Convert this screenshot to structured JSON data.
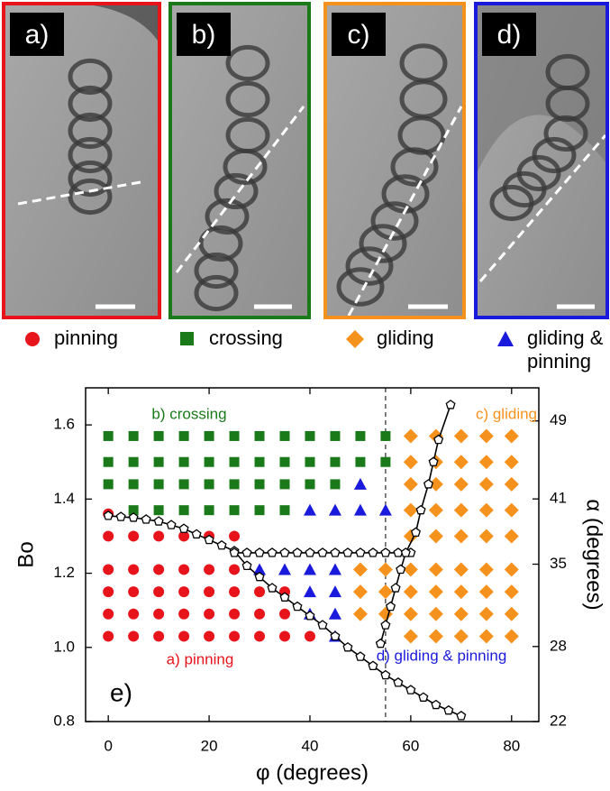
{
  "panels": [
    {
      "label": "a)"
    },
    {
      "label": "b)"
    },
    {
      "label": "c)"
    },
    {
      "label": "d)"
    }
  ],
  "chart_data": {
    "type": "scatter",
    "xlabel": "φ (degrees)",
    "ylabel": "Bo",
    "y2label": "α (degrees)",
    "xlim": [
      -4.5,
      85.4
    ],
    "ylim": [
      0.8,
      1.7
    ],
    "xticks": [
      0,
      20,
      40,
      60,
      80
    ],
    "yticks": [
      0.8,
      {
        "value": 1.0,
        "label": "1.0"
      },
      1.2,
      1.4,
      1.6
    ],
    "y2lim": [
      22,
      52.8
    ],
    "y2scale": "sine",
    "y2ticks": [
      22,
      28,
      35,
      41,
      49
    ],
    "series": [
      {
        "name": "pinning",
        "color": "#e8141c",
        "marker": "circle",
        "x": [
          0,
          5,
          10,
          15,
          20,
          25,
          30,
          35,
          40,
          0,
          5,
          10,
          15,
          20,
          25,
          30,
          35,
          0,
          5,
          10,
          15,
          20,
          25,
          30,
          35,
          0,
          5,
          10,
          15,
          20,
          25,
          0,
          5,
          10,
          15,
          20,
          25,
          0
        ],
        "values": [
          1.03,
          1.03,
          1.03,
          1.03,
          1.03,
          1.03,
          1.03,
          1.03,
          1.03,
          1.09,
          1.09,
          1.09,
          1.09,
          1.09,
          1.09,
          1.09,
          1.09,
          1.15,
          1.15,
          1.15,
          1.15,
          1.15,
          1.15,
          1.15,
          1.15,
          1.21,
          1.21,
          1.21,
          1.21,
          1.21,
          1.21,
          1.3,
          1.3,
          1.3,
          1.3,
          1.3,
          1.3,
          1.36
        ]
      },
      {
        "name": "crossing",
        "color": "#1a7a1a",
        "marker": "square",
        "x": [
          5,
          10,
          15,
          20,
          25,
          30,
          35,
          0,
          5,
          10,
          15,
          20,
          25,
          30,
          35,
          40,
          45,
          0,
          5,
          10,
          15,
          20,
          25,
          30,
          35,
          40,
          45,
          50,
          55,
          0,
          5,
          10,
          15,
          20,
          25,
          30,
          35,
          40,
          45,
          50,
          55
        ],
        "values": [
          1.37,
          1.37,
          1.37,
          1.37,
          1.37,
          1.37,
          1.37,
          1.44,
          1.44,
          1.44,
          1.44,
          1.44,
          1.44,
          1.44,
          1.44,
          1.44,
          1.44,
          1.5,
          1.5,
          1.5,
          1.5,
          1.5,
          1.5,
          1.5,
          1.5,
          1.5,
          1.5,
          1.5,
          1.5,
          1.57,
          1.57,
          1.57,
          1.57,
          1.57,
          1.57,
          1.57,
          1.57,
          1.57,
          1.57,
          1.57,
          1.57
        ]
      },
      {
        "name": "gliding",
        "color": "#f5921e",
        "marker": "diamond",
        "x": [
          60,
          65,
          70,
          75,
          80,
          50,
          55,
          60,
          65,
          70,
          75,
          80,
          50,
          55,
          60,
          65,
          70,
          75,
          80,
          50,
          55,
          60,
          65,
          70,
          75,
          80,
          60,
          65,
          70,
          75,
          80,
          60,
          65,
          70,
          75,
          80,
          60,
          65,
          70,
          75,
          80,
          60,
          65,
          70,
          75,
          80,
          60,
          65,
          70,
          75,
          80
        ],
        "values": [
          1.03,
          1.03,
          1.03,
          1.03,
          1.03,
          1.09,
          1.09,
          1.09,
          1.09,
          1.09,
          1.09,
          1.09,
          1.15,
          1.15,
          1.15,
          1.15,
          1.15,
          1.15,
          1.15,
          1.21,
          1.21,
          1.21,
          1.21,
          1.21,
          1.21,
          1.21,
          1.3,
          1.3,
          1.3,
          1.3,
          1.3,
          1.37,
          1.37,
          1.37,
          1.37,
          1.37,
          1.44,
          1.44,
          1.44,
          1.44,
          1.44,
          1.5,
          1.5,
          1.5,
          1.5,
          1.5,
          1.57,
          1.57,
          1.57,
          1.57,
          1.57
        ]
      },
      {
        "name": "gliding & pinning",
        "color": "#1a1adc",
        "marker": "triangle",
        "x": [
          45,
          40,
          45,
          40,
          45,
          30,
          35,
          40,
          45,
          40,
          45,
          50,
          55,
          50
        ],
        "values": [
          1.03,
          1.09,
          1.09,
          1.15,
          1.15,
          1.21,
          1.21,
          1.21,
          1.21,
          1.37,
          1.37,
          1.37,
          1.37,
          1.44
        ]
      }
    ],
    "curve_color": "#000000",
    "curves": [
      {
        "x": [
          0,
          2.5,
          5,
          7.5,
          10,
          12.5,
          15,
          17.5,
          20,
          22.5,
          25,
          27.5,
          30,
          32.5,
          35,
          37.5,
          40,
          42.5,
          45,
          47.5,
          50,
          52.5,
          55,
          57.5,
          60,
          62.5,
          65,
          67.5,
          70
        ],
        "values": [
          1.355,
          1.352,
          1.35,
          1.345,
          1.34,
          1.33,
          1.32,
          1.305,
          1.29,
          1.275,
          1.26,
          1.22,
          1.19,
          1.16,
          1.135,
          1.11,
          1.085,
          1.06,
          1.03,
          1.0,
          0.975,
          0.95,
          0.925,
          0.905,
          0.885,
          0.865,
          0.845,
          0.83,
          0.815
        ]
      },
      {
        "x": [
          25,
          27.5,
          30,
          32.5,
          35,
          37.5,
          40,
          42.5,
          45,
          47.5,
          50,
          52.5,
          55,
          57.5,
          60
        ],
        "values": [
          1.255,
          1.255,
          1.255,
          1.255,
          1.255,
          1.255,
          1.255,
          1.255,
          1.255,
          1.255,
          1.255,
          1.255,
          1.255,
          1.255,
          1.255
        ]
      },
      {
        "x": [
          54,
          55,
          56,
          57,
          58,
          59,
          61,
          62,
          63.5,
          64.5,
          65.5,
          67.9
        ],
        "values": [
          1.01,
          1.06,
          1.11,
          1.16,
          1.21,
          1.255,
          1.31,
          1.37,
          1.44,
          1.5,
          1.56,
          1.654
        ]
      }
    ],
    "vlines": [
      55
    ],
    "annotations": [
      {
        "text": "b) crossing",
        "color": "#1a7a1a"
      },
      {
        "text": "c) gliding",
        "color": "#f5921e"
      },
      {
        "text": "a) pinning",
        "color": "#e8141c"
      },
      {
        "text": "d) gliding & pinning",
        "color": "#1a1adc"
      },
      {
        "text": "e)",
        "color": "#000000"
      }
    ]
  }
}
